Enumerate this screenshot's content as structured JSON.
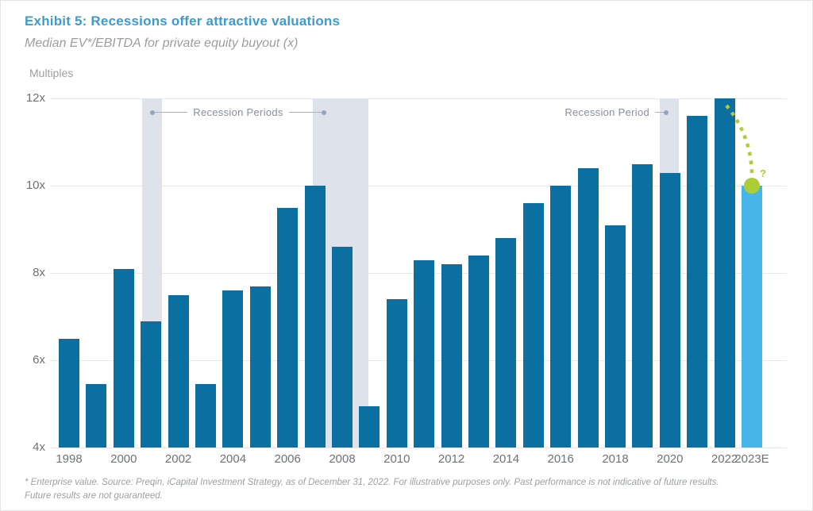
{
  "header": {
    "title": "Exhibit 5: Recessions offer attractive valuations",
    "subtitle": "Median EV*/EBITDA for private equity buyout (x)",
    "axis_title": "Multiples"
  },
  "chart_data": {
    "type": "bar",
    "title": "Median EV*/EBITDA for private equity buyout (x)",
    "ylabel": "Multiples",
    "ylim": [
      4,
      12
    ],
    "grid": true,
    "categories": [
      "1998",
      "1999",
      "2000",
      "2001",
      "2002",
      "2003",
      "2004",
      "2005",
      "2006",
      "2007",
      "2008",
      "2009",
      "2010",
      "2011",
      "2012",
      "2013",
      "2014",
      "2015",
      "2016",
      "2017",
      "2018",
      "2019",
      "2020",
      "2021",
      "2022",
      "2023E"
    ],
    "values": [
      6.5,
      5.45,
      8.1,
      6.9,
      7.5,
      5.45,
      7.6,
      7.7,
      9.5,
      10.0,
      8.6,
      4.95,
      7.4,
      8.3,
      8.2,
      8.4,
      8.8,
      9.6,
      10.0,
      10.4,
      9.1,
      10.5,
      10.3,
      11.6,
      12.0,
      10.0
    ],
    "first_year": 1998,
    "estimate_index": 25,
    "yticks": [
      {
        "label": "12x",
        "value": 12
      },
      {
        "label": "10x",
        "value": 10
      },
      {
        "label": "8x",
        "value": 8
      },
      {
        "label": "6x",
        "value": 6
      },
      {
        "label": "4x",
        "value": 4
      }
    ],
    "xticks": [
      {
        "label": "1998",
        "year": 1998
      },
      {
        "label": "2000",
        "year": 2000
      },
      {
        "label": "2002",
        "year": 2002
      },
      {
        "label": "2004",
        "year": 2004
      },
      {
        "label": "2006",
        "year": 2006
      },
      {
        "label": "2008",
        "year": 2008
      },
      {
        "label": "2010",
        "year": 2010
      },
      {
        "label": "2012",
        "year": 2012
      },
      {
        "label": "2014",
        "year": 2014
      },
      {
        "label": "2016",
        "year": 2016
      },
      {
        "label": "2018",
        "year": 2018
      },
      {
        "label": "2020",
        "year": 2020
      },
      {
        "label": "2022",
        "year": 2022
      },
      {
        "label": "2023E",
        "year": 2023
      }
    ],
    "recession_bands": [
      {
        "start_year": 2000.67,
        "end_year": 2001.4
      },
      {
        "start_year": 2006.92,
        "end_year": 2008.96
      },
      {
        "start_year": 2019.63,
        "end_year": 2020.33
      }
    ],
    "annotations": {
      "recession_periods_label": "Recession Periods",
      "recession_period_label": "Recession Period",
      "question_label": "?"
    },
    "colors": {
      "bar": "#0b70a1",
      "estimate_bar": "#48b5e8",
      "band": "#dde2eb",
      "grid": "#e7e9ee",
      "axis_text": "#6e7276",
      "title_blue": "#3a9ccf",
      "subtitle_gray": "#9b9ea1",
      "annotation_text": "#868f9b",
      "annotation_line": "#a5b2c4",
      "annotation_dot": "#93a5bb",
      "green": "#accd35",
      "footnote_gray": "#9aa0a6"
    }
  },
  "footnote": {
    "line1": "* Enterprise value. Source: Preqin, iCapital Investment Strategy, as of December 31, 2022. For illustrative purposes only. Past performance is not indicative of future results.",
    "line2": "Future results are not guaranteed."
  }
}
